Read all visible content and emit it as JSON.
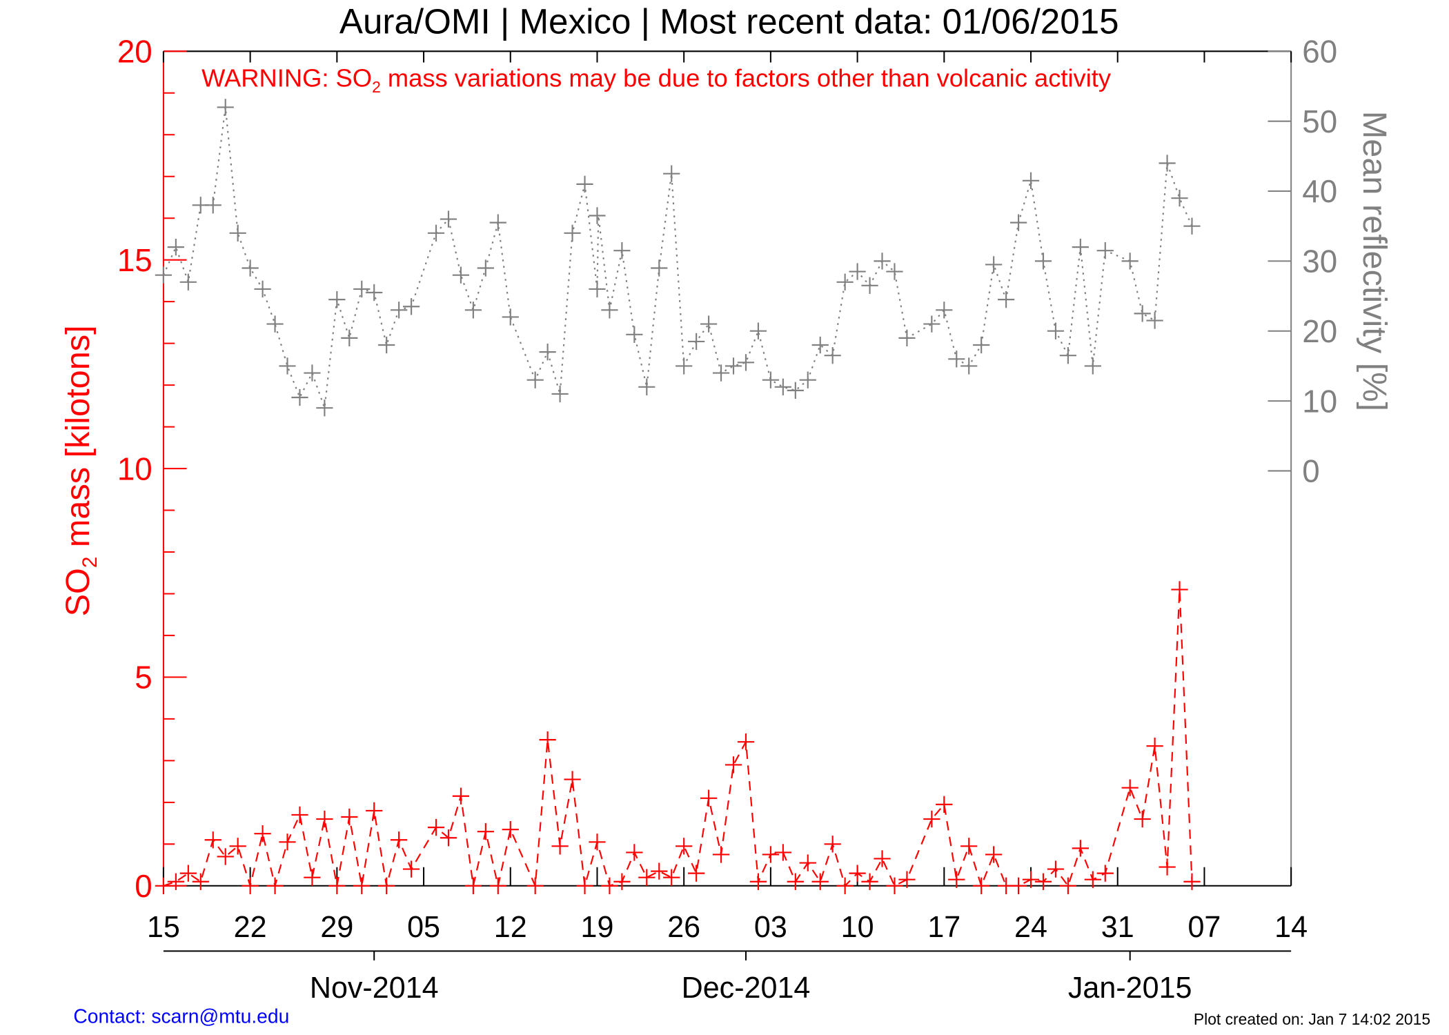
{
  "chart_data": {
    "type": "line",
    "title": "Aura/OMI | Mexico | Most recent data: 01/06/2015",
    "warning": {
      "prefix": "WARNING: SO",
      "sub": "2",
      "suffix": " mass variations may be due to factors other than volcanic activity"
    },
    "ylabel": {
      "prefix": "SO",
      "sub": "2",
      "suffix": " mass [kilotons]"
    },
    "y2label": "Mean reflectivity [%]",
    "x_start_date": "2014-10-15",
    "xlim_days": [
      0,
      91
    ],
    "ylim": [
      0,
      20
    ],
    "y2lim": [
      0,
      60
    ],
    "y_ticks": [
      "0",
      "5",
      "10",
      "15",
      "20"
    ],
    "y2_ticks": [
      "0",
      "10",
      "20",
      "30",
      "40",
      "50",
      "60"
    ],
    "x_tick_labels": [
      "15",
      "22",
      "29",
      "05",
      "12",
      "19",
      "26",
      "03",
      "10",
      "17",
      "24",
      "31",
      "07",
      "14"
    ],
    "month_labels": [
      {
        "label": "Nov-2014",
        "day": 17
      },
      {
        "label": "Dec-2014",
        "day": 47
      },
      {
        "label": "Jan-2015",
        "day": 78
      }
    ],
    "colors": {
      "so2": "#ff0000",
      "reflectivity": "#808080",
      "contact": "#0000ff"
    },
    "series": [
      {
        "name": "SO2 mass [kilotons]",
        "axis": "left",
        "x": [
          0,
          1,
          2,
          3,
          4,
          5,
          6,
          7,
          8,
          9,
          10,
          11,
          12,
          13,
          14,
          15,
          16,
          17,
          18,
          19,
          20,
          22,
          23,
          24,
          25,
          26,
          27,
          28,
          30,
          31,
          32,
          33,
          34,
          35,
          36,
          37,
          38,
          39,
          40,
          41,
          42,
          43,
          44,
          45,
          46,
          47,
          48,
          49,
          50,
          51,
          52,
          53,
          54,
          55,
          56,
          57,
          58,
          59,
          60,
          62,
          63,
          64,
          65,
          66,
          67,
          68,
          69,
          70,
          71,
          72,
          73,
          74,
          75,
          76,
          78,
          79,
          80,
          81,
          82,
          83
        ],
        "y": [
          0,
          0.1,
          0.3,
          0.1,
          1.1,
          0.7,
          0.95,
          0,
          1.25,
          0,
          1.05,
          1.7,
          0.2,
          1.6,
          0,
          1.65,
          0,
          1.8,
          0,
          1.1,
          0.4,
          1.4,
          1.15,
          2.15,
          0,
          1.3,
          0,
          1.35,
          0,
          3.5,
          0.95,
          2.55,
          0,
          1.05,
          0,
          0.1,
          0.8,
          0.2,
          0.35,
          0.2,
          0.95,
          0.3,
          2.1,
          0.75,
          2.9,
          3.45,
          0.1,
          0.75,
          0.8,
          0.1,
          0.55,
          0.1,
          1.0,
          0,
          0.3,
          0.1,
          0.65,
          0,
          0.15,
          1.6,
          1.95,
          0.15,
          0.95,
          0,
          0.75,
          0,
          0,
          0.15,
          0.1,
          0.4,
          0,
          0.9,
          0.15,
          0.3,
          2.35,
          1.6,
          3.35,
          0.45,
          7.1,
          0.1
        ]
      },
      {
        "name": "Mean reflectivity [%]",
        "axis": "right",
        "x": [
          0,
          1,
          2,
          3,
          4,
          5,
          6,
          7,
          8,
          9,
          10,
          11,
          12,
          13,
          14,
          15,
          16,
          17,
          18,
          19,
          20,
          22,
          23,
          24,
          25,
          26,
          27,
          28,
          30,
          31,
          32,
          33,
          34,
          35,
          35,
          36,
          37,
          38,
          39,
          40,
          41,
          42,
          43,
          44,
          45,
          46,
          47,
          48,
          49,
          50,
          51,
          52,
          53,
          54,
          55,
          56,
          57,
          58,
          59,
          60,
          62,
          63,
          64,
          65,
          66,
          67,
          68,
          69,
          70,
          71,
          72,
          73,
          74,
          75,
          76,
          78,
          79,
          80,
          81,
          82,
          83
        ],
        "y": [
          28,
          32,
          27,
          38,
          38,
          52,
          34,
          29,
          26,
          21,
          15,
          10.5,
          14,
          9,
          24.5,
          19,
          26,
          25.5,
          18,
          23,
          23.5,
          34,
          36,
          28,
          23,
          29,
          35.5,
          22,
          13,
          17,
          11,
          34,
          41,
          26,
          36.5,
          23,
          31.5,
          19.5,
          12,
          29,
          42.5,
          15,
          18.5,
          21,
          14,
          15,
          15.5,
          20,
          13,
          12,
          11.5,
          13,
          18,
          16.5,
          27,
          28.5,
          26.5,
          30,
          28.5,
          19,
          21,
          23,
          16,
          15,
          18,
          29.5,
          24.5,
          35.5,
          41.5,
          30,
          20,
          16.5,
          32,
          15,
          31.5,
          30,
          22.5,
          21.5,
          44,
          39,
          35
        ]
      }
    ]
  },
  "footer": {
    "contact": "Contact: scarn@mtu.edu",
    "created": "Plot created on: Jan  7 14:02 2015"
  }
}
